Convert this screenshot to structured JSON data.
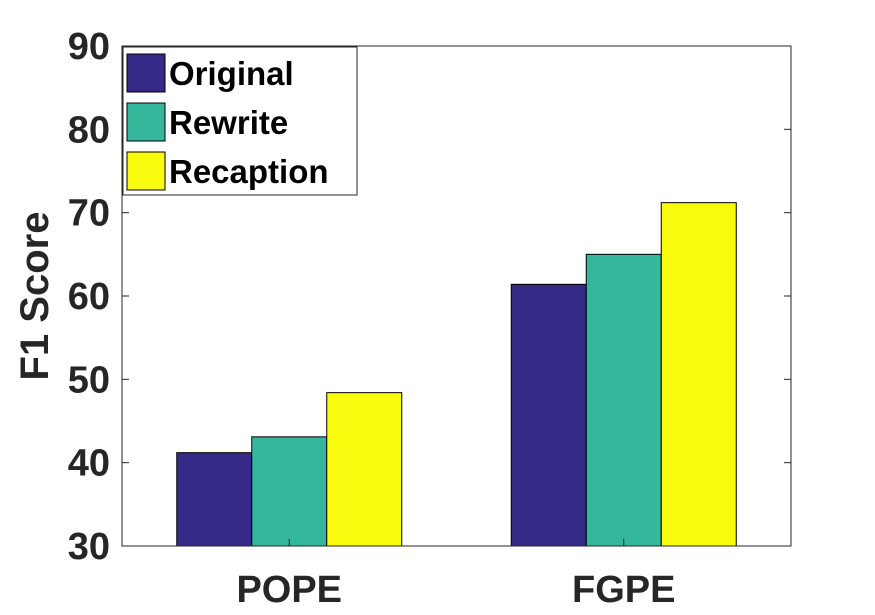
{
  "chart_data": {
    "type": "bar",
    "categories": [
      "POPE",
      "FGPE"
    ],
    "series": [
      {
        "name": "Original",
        "color": "#352A87",
        "values": [
          41.2,
          61.4
        ]
      },
      {
        "name": "Rewrite",
        "color": "#35B79C",
        "values": [
          43.1,
          65.0
        ]
      },
      {
        "name": "Recaption",
        "color": "#F9FB0E",
        "values": [
          48.4,
          71.2
        ]
      }
    ],
    "title": "",
    "xlabel": "",
    "ylabel": "F1 Score",
    "ylim": [
      30,
      90
    ],
    "yticks": [
      30,
      40,
      50,
      60,
      70,
      80,
      90
    ],
    "grid": false,
    "legend_position": "top-left"
  }
}
